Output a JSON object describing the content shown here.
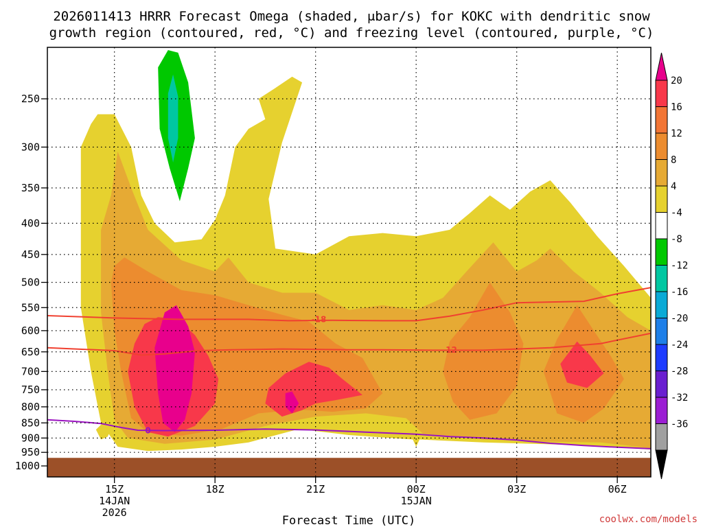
{
  "chart_data": {
    "type": "heatmap",
    "title_lines": [
      "2026011413 HRRR Forecast Omega (shaded, μbar/s) for KOKC with dendritic snow",
      "growth region (contoured, red, °C) and freezing level (contoured, purple, °C)"
    ],
    "xlabel": "Forecast Time (UTC)",
    "ylabel": "",
    "credit": "coolwx.com/models",
    "x_ticks": [
      {
        "h": 15,
        "lines": [
          "15Z",
          "14JAN",
          "2026"
        ]
      },
      {
        "h": 18,
        "lines": [
          "18Z"
        ]
      },
      {
        "h": 21,
        "lines": [
          "21Z"
        ]
      },
      {
        "h": 24,
        "lines": [
          "00Z",
          "15JAN"
        ]
      },
      {
        "h": 27,
        "lines": [
          "03Z"
        ]
      },
      {
        "h": 30,
        "lines": [
          "06Z"
        ]
      }
    ],
    "x_range_hours": [
      13.0,
      31.0
    ],
    "y_ticks": [
      250,
      300,
      350,
      400,
      450,
      500,
      550,
      600,
      650,
      700,
      750,
      800,
      850,
      900,
      950,
      1000
    ],
    "y_range_hpa": [
      200,
      1050
    ],
    "y_scale": "log",
    "ground_level_hpa": 970,
    "colorbar": {
      "labels": [
        "20",
        "16",
        "12",
        "8",
        "4",
        "-4",
        "-8",
        "-12",
        "-16",
        "-20",
        "-24",
        "-28",
        "-32",
        "-36"
      ],
      "colors": [
        "#f8384a",
        "#f27535",
        "#ec8c2f",
        "#e6aa34",
        "#e6d12f",
        "#ffffff",
        "#00c800",
        "#00c7a1",
        "#0aaad6",
        "#1e7fe8",
        "#1e3cff",
        "#6a1fd0",
        "#9b1ed3",
        "#a0a0a0"
      ],
      "top_arrow_color": "#e8008c",
      "bottom_arrow_color": "#000000"
    },
    "series": [
      {
        "name": "omega +4",
        "color": "#e6d12f",
        "shape": [
          [
            14.0,
            300
          ],
          [
            14.3,
            275
          ],
          [
            14.5,
            265
          ],
          [
            15.0,
            265
          ],
          [
            15.5,
            300
          ],
          [
            15.8,
            360
          ],
          [
            16.2,
            400
          ],
          [
            16.8,
            430
          ],
          [
            17.6,
            425
          ],
          [
            18.0,
            395
          ],
          [
            18.3,
            360
          ],
          [
            18.6,
            300
          ],
          [
            19.0,
            280
          ],
          [
            19.5,
            270
          ],
          [
            19.3,
            250
          ],
          [
            19.8,
            240
          ],
          [
            20.3,
            230
          ],
          [
            20.6,
            235
          ],
          [
            20.0,
            295
          ],
          [
            19.6,
            365
          ],
          [
            19.8,
            440
          ],
          [
            21.0,
            450
          ],
          [
            22.0,
            420
          ],
          [
            23.0,
            415
          ],
          [
            24.0,
            420
          ],
          [
            25.0,
            410
          ],
          [
            25.6,
            385
          ],
          [
            26.2,
            360
          ],
          [
            26.8,
            380
          ],
          [
            27.4,
            355
          ],
          [
            28.0,
            340
          ],
          [
            28.6,
            370
          ],
          [
            29.4,
            420
          ],
          [
            30.2,
            470
          ],
          [
            31.0,
            530
          ],
          [
            31.0,
            940
          ],
          [
            29.0,
            925
          ],
          [
            27.5,
            920
          ],
          [
            26.0,
            915
          ],
          [
            24.1,
            905
          ],
          [
            24.0,
            930
          ],
          [
            23.9,
            905
          ],
          [
            22.0,
            890
          ],
          [
            20.5,
            870
          ],
          [
            19.0,
            915
          ],
          [
            18.0,
            930
          ],
          [
            17.0,
            940
          ],
          [
            16.0,
            945
          ],
          [
            15.1,
            930
          ],
          [
            14.6,
            850
          ],
          [
            14.3,
            700
          ],
          [
            14.0,
            550
          ]
        ]
      },
      {
        "name": "omega +4 (850 hPa cell)",
        "color": "#e6d12f",
        "shape": [
          [
            14.7,
            845
          ],
          [
            14.9,
            868
          ],
          [
            14.8,
            895
          ],
          [
            14.6,
            905
          ],
          [
            14.45,
            872
          ]
        ]
      },
      {
        "name": "omega +8",
        "color": "#e6aa34",
        "shape": [
          [
            14.6,
            410
          ],
          [
            14.9,
            360
          ],
          [
            15.1,
            305
          ],
          [
            15.5,
            350
          ],
          [
            16.0,
            410
          ],
          [
            17.0,
            460
          ],
          [
            18.0,
            480
          ],
          [
            18.4,
            455
          ],
          [
            19.0,
            500
          ],
          [
            20.0,
            520
          ],
          [
            21.0,
            520
          ],
          [
            22.0,
            555
          ],
          [
            23.0,
            545
          ],
          [
            24.0,
            555
          ],
          [
            24.8,
            530
          ],
          [
            25.5,
            480
          ],
          [
            26.3,
            430
          ],
          [
            27.0,
            480
          ],
          [
            27.6,
            460
          ],
          [
            28.0,
            440
          ],
          [
            28.7,
            480
          ],
          [
            29.5,
            520
          ],
          [
            30.3,
            570
          ],
          [
            31.0,
            600
          ],
          [
            31.0,
            935
          ],
          [
            29.5,
            915
          ],
          [
            27.8,
            912
          ],
          [
            26.0,
            905
          ],
          [
            24.2,
            885
          ],
          [
            23.7,
            835
          ],
          [
            22.5,
            820
          ],
          [
            21.0,
            830
          ],
          [
            19.5,
            860
          ],
          [
            18.0,
            905
          ],
          [
            16.5,
            920
          ],
          [
            15.4,
            900
          ],
          [
            15.0,
            840
          ],
          [
            14.8,
            700
          ],
          [
            14.6,
            560
          ]
        ]
      },
      {
        "name": "omega +12",
        "color": "#ec8c2f",
        "shape": [
          [
            14.9,
            500
          ],
          [
            15.0,
            470
          ],
          [
            15.3,
            455
          ],
          [
            16.0,
            480
          ],
          [
            17.0,
            515
          ],
          [
            18.0,
            525
          ],
          [
            19.0,
            545
          ],
          [
            20.0,
            565
          ],
          [
            20.8,
            580
          ],
          [
            21.6,
            630
          ],
          [
            22.4,
            665
          ],
          [
            23.0,
            760
          ],
          [
            22.5,
            805
          ],
          [
            21.5,
            815
          ],
          [
            20.5,
            808
          ],
          [
            19.3,
            820
          ],
          [
            18.2,
            870
          ],
          [
            17.0,
            892
          ],
          [
            16.0,
            882
          ],
          [
            15.5,
            835
          ],
          [
            15.2,
            700
          ],
          [
            15.0,
            600
          ]
        ]
      },
      {
        "name": "omega +12 (night cell)",
        "color": "#ec8c2f",
        "shape": [
          [
            25.0,
            625
          ],
          [
            25.6,
            570
          ],
          [
            26.2,
            500
          ],
          [
            26.8,
            560
          ],
          [
            27.2,
            630
          ],
          [
            27.0,
            740
          ],
          [
            26.4,
            820
          ],
          [
            25.6,
            840
          ],
          [
            25.1,
            785
          ],
          [
            24.8,
            700
          ]
        ]
      },
      {
        "name": "omega +12 (east cell)",
        "color": "#ec8c2f",
        "shape": [
          [
            27.8,
            700
          ],
          [
            28.2,
            620
          ],
          [
            28.8,
            545
          ],
          [
            29.3,
            600
          ],
          [
            29.8,
            660
          ],
          [
            30.2,
            720
          ],
          [
            29.6,
            805
          ],
          [
            29.0,
            850
          ],
          [
            28.2,
            820
          ]
        ]
      },
      {
        "name": "omega +16",
        "color": "#f8384a",
        "shape": [
          [
            15.6,
            630
          ],
          [
            15.9,
            585
          ],
          [
            16.3,
            570
          ],
          [
            16.9,
            575
          ],
          [
            17.4,
            610
          ],
          [
            17.8,
            660
          ],
          [
            18.1,
            720
          ],
          [
            18.0,
            790
          ],
          [
            17.4,
            860
          ],
          [
            16.6,
            895
          ],
          [
            16.0,
            880
          ],
          [
            15.6,
            800
          ],
          [
            15.4,
            700
          ]
        ]
      },
      {
        "name": "omega +16 (21Z cell)",
        "color": "#f8384a",
        "shape": [
          [
            19.6,
            745
          ],
          [
            20.1,
            705
          ],
          [
            20.8,
            675
          ],
          [
            21.4,
            690
          ],
          [
            21.8,
            720
          ],
          [
            22.4,
            765
          ],
          [
            21.6,
            780
          ],
          [
            21.0,
            790
          ],
          [
            20.6,
            810
          ],
          [
            20.0,
            830
          ],
          [
            19.5,
            790
          ]
        ]
      },
      {
        "name": "omega +16 (east cell)",
        "color": "#f8384a",
        "shape": [
          [
            28.3,
            680
          ],
          [
            28.8,
            625
          ],
          [
            29.2,
            660
          ],
          [
            29.6,
            705
          ],
          [
            29.1,
            745
          ],
          [
            28.5,
            730
          ]
        ]
      },
      {
        "name": "omega +20",
        "color": "#e8008c",
        "shape": [
          [
            16.2,
            640
          ],
          [
            16.5,
            560
          ],
          [
            16.85,
            545
          ],
          [
            17.2,
            590
          ],
          [
            17.4,
            650
          ],
          [
            17.3,
            760
          ],
          [
            17.1,
            840
          ],
          [
            16.8,
            880
          ],
          [
            16.45,
            850
          ],
          [
            16.3,
            760
          ]
        ]
      },
      {
        "name": "omega +20 (small cell)",
        "color": "#e8008c",
        "shape": [
          [
            20.1,
            760
          ],
          [
            20.3,
            755
          ],
          [
            20.5,
            790
          ],
          [
            20.3,
            820
          ],
          [
            20.1,
            800
          ]
        ]
      },
      {
        "name": "omega -4",
        "color": "#00c800",
        "shape": [
          [
            16.3,
            222
          ],
          [
            16.6,
            208
          ],
          [
            16.9,
            210
          ],
          [
            17.2,
            235
          ],
          [
            17.4,
            290
          ],
          [
            17.2,
            325
          ],
          [
            16.95,
            368
          ],
          [
            16.65,
            325
          ],
          [
            16.35,
            280
          ]
        ]
      },
      {
        "name": "omega -8",
        "color": "#00c7a1",
        "shape": [
          [
            16.6,
            245
          ],
          [
            16.75,
            228
          ],
          [
            16.9,
            248
          ],
          [
            16.9,
            290
          ],
          [
            16.75,
            318
          ],
          [
            16.6,
            290
          ]
        ]
      }
    ],
    "contours": [
      {
        "name": "-18 C isotherm",
        "color": "#f04030",
        "label": "-18",
        "label_at": [
          21.1,
          575
        ],
        "points": [
          [
            13.0,
            567
          ],
          [
            15.0,
            572
          ],
          [
            17.0,
            575
          ],
          [
            19.0,
            575
          ],
          [
            20.2,
            578
          ],
          [
            21.5,
            577
          ],
          [
            23.0,
            578
          ],
          [
            24.0,
            578
          ],
          [
            25.0,
            568
          ],
          [
            26.0,
            555
          ],
          [
            27.0,
            540
          ],
          [
            29.0,
            537
          ],
          [
            30.0,
            522
          ],
          [
            31.0,
            510
          ]
        ]
      },
      {
        "name": "-12 C isotherm",
        "color": "#f04030",
        "label": "-12",
        "label_at": [
          25.0,
          645
        ],
        "points": [
          [
            13.0,
            640
          ],
          [
            15.0,
            647
          ],
          [
            15.8,
            658
          ],
          [
            16.5,
            655
          ],
          [
            17.5,
            647
          ],
          [
            18.5,
            645
          ],
          [
            20.0,
            643
          ],
          [
            22.0,
            645
          ],
          [
            23.0,
            645
          ],
          [
            24.5,
            646
          ],
          [
            26.0,
            646
          ],
          [
            28.0,
            640
          ],
          [
            29.5,
            630
          ],
          [
            31.0,
            606
          ]
        ]
      },
      {
        "name": "0 C freezing level",
        "color": "#9a12c0",
        "label": "0",
        "label_at": [
          16.0,
          875
        ],
        "points": [
          [
            13.0,
            840
          ],
          [
            13.8,
            845
          ],
          [
            14.6,
            852
          ],
          [
            15.2,
            865
          ],
          [
            15.7,
            874
          ],
          [
            16.5,
            875
          ],
          [
            18.0,
            874
          ],
          [
            19.5,
            870
          ],
          [
            21.0,
            873
          ],
          [
            22.5,
            880
          ],
          [
            24.0,
            887
          ],
          [
            25.0,
            895
          ],
          [
            26.0,
            900
          ],
          [
            27.0,
            907
          ],
          [
            28.0,
            918
          ],
          [
            29.0,
            926
          ],
          [
            30.0,
            932
          ],
          [
            31.0,
            937
          ]
        ]
      }
    ]
  }
}
